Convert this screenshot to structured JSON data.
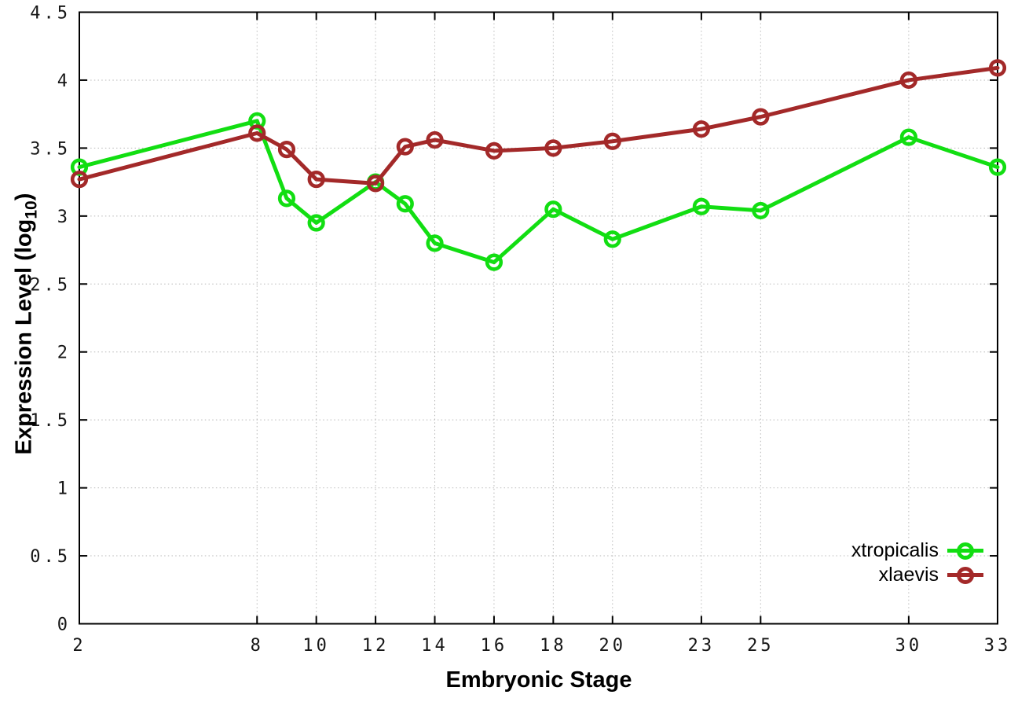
{
  "chart_data": {
    "type": "line",
    "title": "",
    "xlabel": "Embryonic Stage",
    "ylabel": "Expression Level (log10)",
    "ylabel_prefix": "Expression Level (log",
    "ylabel_subscript": "10",
    "ylabel_suffix": ")",
    "x": [
      2,
      8,
      9,
      10,
      12,
      13,
      14,
      16,
      18,
      20,
      23,
      25,
      30,
      33
    ],
    "series": [
      {
        "name": "xtropicalis",
        "color": "#12DE12",
        "values": [
          3.36,
          3.7,
          3.13,
          2.95,
          3.25,
          3.09,
          2.8,
          2.66,
          3.05,
          2.83,
          3.07,
          3.04,
          3.58,
          3.36
        ]
      },
      {
        "name": "xlaevis",
        "color": "#A32929",
        "values": [
          3.27,
          3.61,
          3.49,
          3.27,
          3.24,
          3.51,
          3.56,
          3.48,
          3.5,
          3.55,
          3.64,
          3.73,
          4.0,
          4.09
        ]
      }
    ],
    "xticks": [
      2,
      8,
      10,
      12,
      14,
      16,
      18,
      20,
      23,
      25,
      30,
      33
    ],
    "yticks": [
      0,
      0.5,
      1,
      1.5,
      2,
      2.5,
      3,
      3.5,
      4,
      4.5
    ],
    "ytick_labels": [
      "0",
      "0.5",
      "1",
      "1.5",
      "2",
      "2.5",
      "3",
      "3.5",
      "4",
      "4.5"
    ],
    "xlim": [
      2,
      33
    ],
    "ylim": [
      0,
      4.5
    ],
    "grid": true,
    "legend_position": "inside bottom-right",
    "axis_color": "#000000",
    "grid_color": "#b8b8b8",
    "background": "#ffffff"
  }
}
